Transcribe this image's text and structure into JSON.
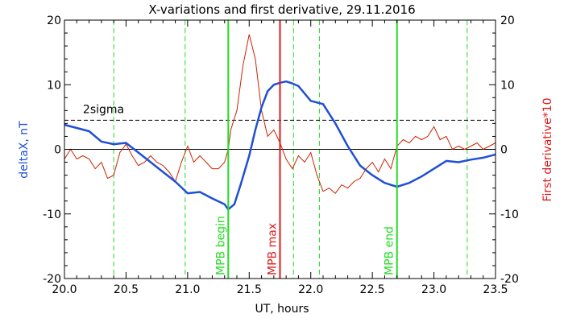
{
  "chart_data": {
    "type": "line",
    "title": "X-variations and first derivative, 29.11.2016",
    "xlabel": "UT, hours",
    "ylabel_left": "deltaX, nT",
    "ylabel_right": "First derivative*10",
    "xlim": [
      20.0,
      23.5
    ],
    "ylim": [
      -20,
      20
    ],
    "x_ticks": [
      "20.0",
      "20.5",
      "21.0",
      "21.5",
      "22.0",
      "22.5",
      "23.0",
      "23.5"
    ],
    "y_ticks_left": [
      "20",
      "10",
      "0",
      "-10",
      "-20"
    ],
    "y_ticks_right": [
      "20",
      "10",
      "0",
      "-10",
      "-20"
    ],
    "colors": {
      "deltaX": "#1f4fd6",
      "derivative": "#cc2200",
      "green": "#22dd22",
      "max": "#dd1a1a"
    },
    "threshold": {
      "label": "2sigma",
      "y": 4.5
    },
    "zero_line": 0,
    "vlines": [
      {
        "x": 21.33,
        "label": "MPB begin",
        "color": "#22dd22"
      },
      {
        "x": 21.75,
        "label": "MPB max",
        "color": "#dd1a1a"
      },
      {
        "x": 22.7,
        "label": "MPB end",
        "color": "#22dd22"
      }
    ],
    "dashed_vlines": [
      20.4,
      20.98,
      21.86,
      22.07,
      23.27
    ],
    "series": [
      {
        "name": "deltaX",
        "x": [
          20.0,
          20.1,
          20.2,
          20.3,
          20.4,
          20.5,
          20.6,
          20.7,
          20.8,
          20.9,
          21.0,
          21.1,
          21.2,
          21.3,
          21.33,
          21.38,
          21.43,
          21.5,
          21.55,
          21.6,
          21.65,
          21.7,
          21.75,
          21.8,
          21.85,
          21.9,
          22.0,
          22.1,
          22.2,
          22.3,
          22.4,
          22.5,
          22.6,
          22.7,
          22.8,
          22.9,
          23.0,
          23.1,
          23.2,
          23.3,
          23.4,
          23.5
        ],
        "values": [
          3.8,
          3.3,
          2.8,
          1.2,
          0.8,
          1.0,
          -0.5,
          -2.0,
          -3.5,
          -5.0,
          -6.8,
          -6.6,
          -7.6,
          -8.5,
          -9.3,
          -8.5,
          -5.5,
          -1.0,
          3.0,
          6.5,
          9.0,
          10.0,
          10.3,
          10.5,
          10.2,
          9.8,
          7.5,
          7.0,
          4.0,
          0.5,
          -2.5,
          -4.0,
          -5.2,
          -5.8,
          -5.2,
          -4.2,
          -3.0,
          -1.8,
          -2.0,
          -1.6,
          -1.3,
          -0.8
        ]
      },
      {
        "name": "First derivative*10",
        "x": [
          20.0,
          20.05,
          20.1,
          20.15,
          20.2,
          20.25,
          20.3,
          20.35,
          20.4,
          20.45,
          20.5,
          20.55,
          20.6,
          20.65,
          20.7,
          20.75,
          20.8,
          20.85,
          20.9,
          20.95,
          21.0,
          21.05,
          21.1,
          21.15,
          21.2,
          21.25,
          21.3,
          21.33,
          21.35,
          21.4,
          21.45,
          21.5,
          21.55,
          21.6,
          21.65,
          21.7,
          21.75,
          21.8,
          21.85,
          21.9,
          21.95,
          22.0,
          22.05,
          22.1,
          22.15,
          22.2,
          22.25,
          22.3,
          22.35,
          22.4,
          22.45,
          22.5,
          22.55,
          22.6,
          22.65,
          22.7,
          22.75,
          22.8,
          22.85,
          22.9,
          22.95,
          23.0,
          23.05,
          23.1,
          23.15,
          23.2,
          23.25,
          23.3,
          23.35,
          23.4,
          23.45,
          23.5
        ],
        "values": [
          -1.5,
          0.0,
          -1.5,
          -1.0,
          -1.5,
          -3.0,
          -2.0,
          -4.5,
          -4.0,
          -0.5,
          0.8,
          -1.0,
          -2.5,
          -2.0,
          -1.0,
          -2.0,
          -2.5,
          -3.5,
          -5.0,
          -2.0,
          0.5,
          -2.0,
          -1.0,
          -2.0,
          -3.0,
          -3.0,
          -2.0,
          0.0,
          3.0,
          6.0,
          13.0,
          17.8,
          14.0,
          6.0,
          2.0,
          3.0,
          1.0,
          -1.5,
          -3.0,
          -1.0,
          -2.0,
          -0.5,
          -4.0,
          -6.5,
          -6.0,
          -6.8,
          -5.5,
          -6.0,
          -5.0,
          -4.5,
          -3.0,
          -2.0,
          -3.5,
          -1.5,
          -3.0,
          0.5,
          1.5,
          1.0,
          2.0,
          1.5,
          2.0,
          3.5,
          1.5,
          2.0,
          0.0,
          0.5,
          0.0,
          0.5,
          1.0,
          0.0,
          0.5,
          1.0
        ]
      }
    ]
  }
}
